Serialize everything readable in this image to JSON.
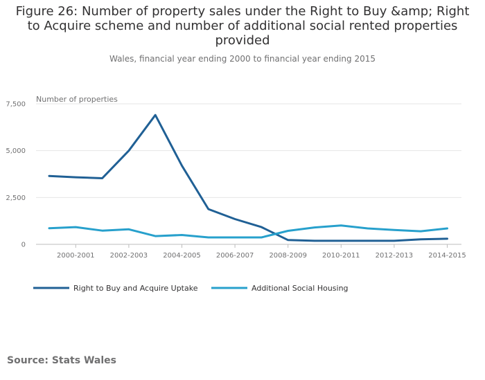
{
  "chart_data": {
    "type": "line",
    "title": "Figure 26: Number of property sales under the Right to Buy &amp; Right to Acquire scheme and number of additional social rented properties provided",
    "subtitle": "Wales, financial year ending 2000 to financial year ending 2015",
    "ylabel": "Number of properties",
    "xlabel": "",
    "ylim": [
      0,
      7500
    ],
    "yticks": [
      0,
      2500,
      5000,
      7500
    ],
    "ytick_labels": [
      "0",
      "2,500",
      "5,000",
      "7,500"
    ],
    "categories": [
      "1999-2000",
      "2000-2001",
      "2001-2002",
      "2002-2003",
      "2003-2004",
      "2004-2005",
      "2005-2006",
      "2006-2007",
      "2007-2008",
      "2008-2009",
      "2009-2010",
      "2010-2011",
      "2011-2012",
      "2012-2013",
      "2013-2014",
      "2014-2015"
    ],
    "xtick_labels": [
      "2000-2001",
      "2002-2003",
      "2004-2005",
      "2006-2007",
      "2008-2009",
      "2010-2011",
      "2012-2013",
      "2014-2015"
    ],
    "legend_position": "bottom-left",
    "grid": true,
    "series": [
      {
        "name": "Right to Buy and Acquire Uptake",
        "color": "#206095",
        "values": [
          3650,
          3580,
          3530,
          5000,
          6900,
          4200,
          1880,
          1350,
          920,
          230,
          190,
          190,
          190,
          190,
          270,
          300
        ]
      },
      {
        "name": "Additional Social Housing",
        "color": "#27a0cc",
        "values": [
          860,
          920,
          730,
          800,
          440,
          500,
          370,
          370,
          370,
          720,
          900,
          1010,
          850,
          770,
          700,
          850
        ]
      }
    ]
  },
  "source": "Source: Stats Wales"
}
